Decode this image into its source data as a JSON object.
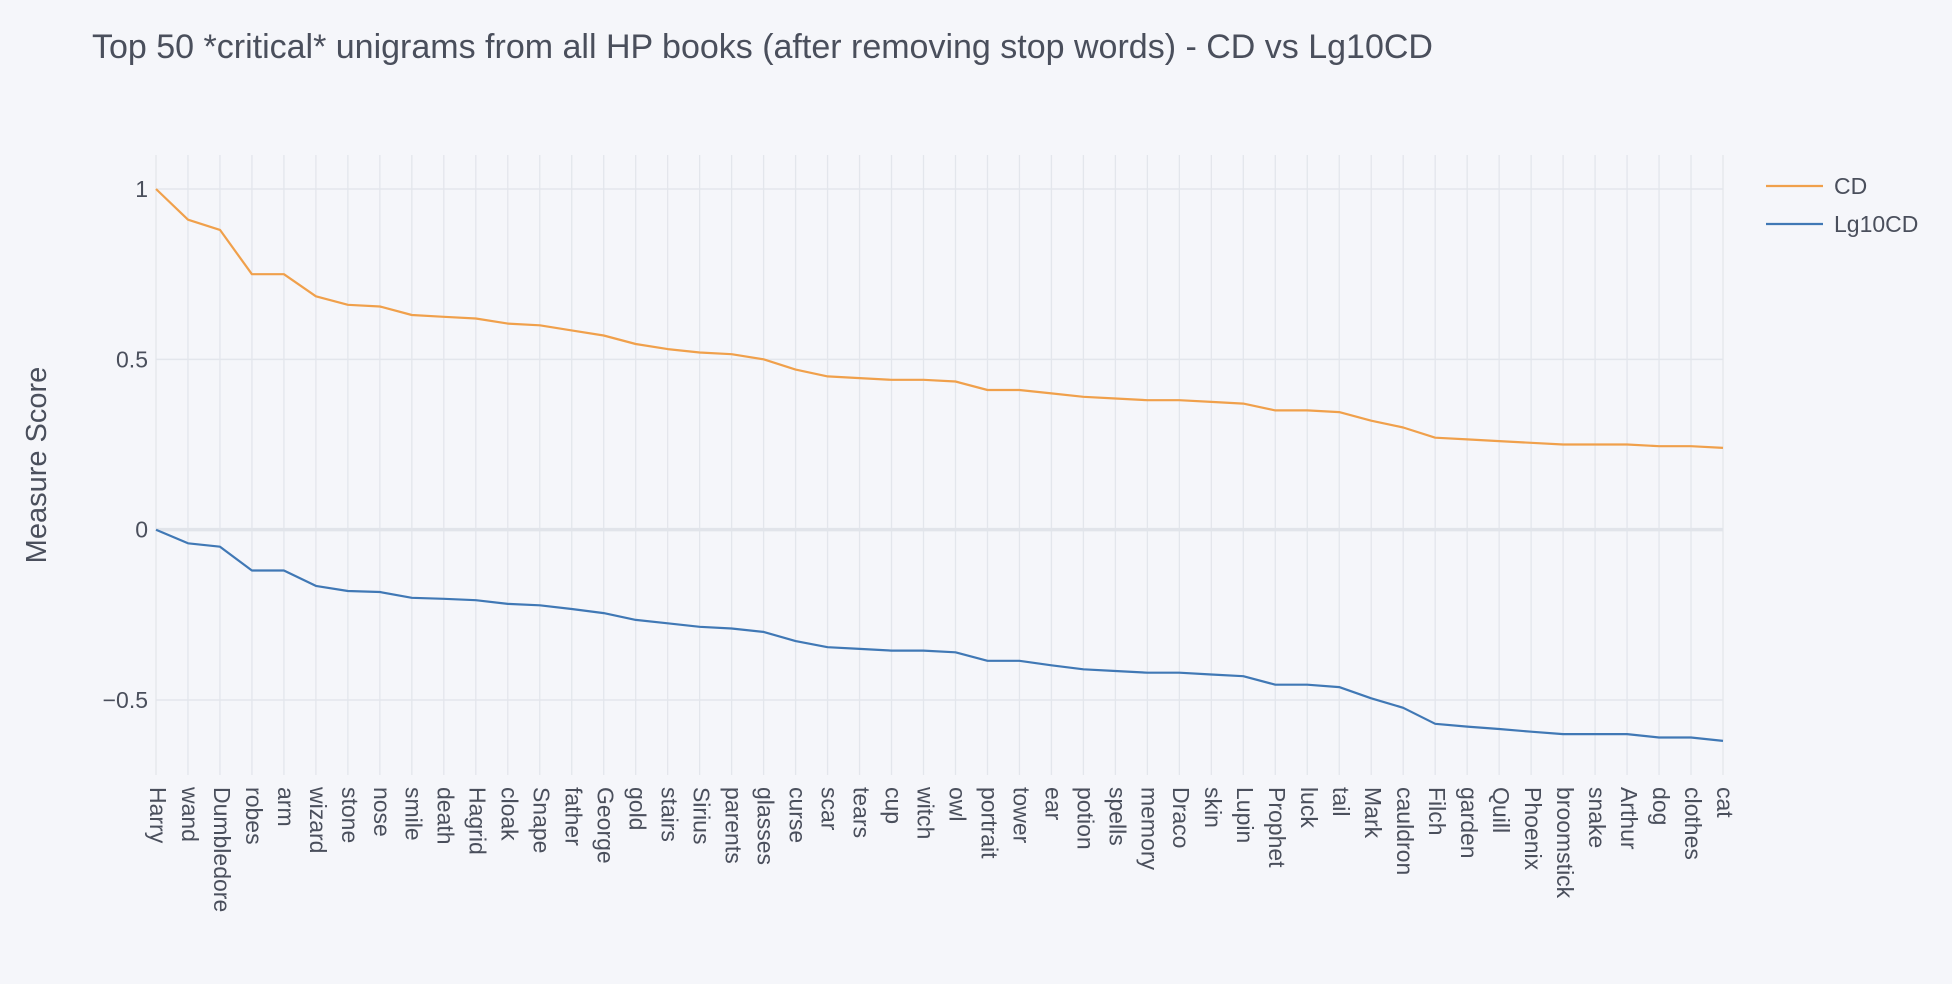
{
  "chart_data": {
    "type": "line",
    "title": "Top 50 *critical* unigrams from all HP books (after removing stop words) - CD vs Lg10CD",
    "xlabel": "",
    "ylabel": "Measure Score",
    "ylim": [
      -0.72,
      1.1
    ],
    "yticks": [
      {
        "value": 1,
        "label": "1"
      },
      {
        "value": 0.5,
        "label": "0.5"
      },
      {
        "value": 0,
        "label": "0"
      },
      {
        "value": -0.5,
        "label": "−0.5"
      }
    ],
    "grid": true,
    "legend_position": "top-right",
    "categories": [
      "Harry",
      "wand",
      "Dumbledore",
      "robes",
      "arm",
      "wizard",
      "stone",
      "nose",
      "smile",
      "death",
      "Hagrid",
      "cloak",
      "Snape",
      "father",
      "George",
      "gold",
      "stairs",
      "Sirius",
      "parents",
      "glasses",
      "curse",
      "scar",
      "tears",
      "cup",
      "witch",
      "owl",
      "portrait",
      "tower",
      "ear",
      "potion",
      "spells",
      "memory",
      "Draco",
      "skin",
      "Lupin",
      "Prophet",
      "luck",
      "tail",
      "Mark",
      "cauldron",
      "Filch",
      "garden",
      "Quill",
      "Phoenix",
      "broomstick",
      "snake",
      "Arthur",
      "dog",
      "clothes",
      "cat"
    ],
    "series": [
      {
        "name": "CD",
        "color": "#f0a04b",
        "values": [
          1.0,
          0.91,
          0.88,
          0.75,
          0.75,
          0.685,
          0.66,
          0.655,
          0.63,
          0.625,
          0.62,
          0.605,
          0.6,
          0.585,
          0.57,
          0.545,
          0.53,
          0.52,
          0.515,
          0.5,
          0.47,
          0.45,
          0.445,
          0.44,
          0.44,
          0.435,
          0.41,
          0.41,
          0.4,
          0.39,
          0.385,
          0.38,
          0.38,
          0.375,
          0.37,
          0.35,
          0.35,
          0.345,
          0.32,
          0.3,
          0.27,
          0.265,
          0.26,
          0.255,
          0.25,
          0.25,
          0.25,
          0.245,
          0.245,
          0.24
        ]
      },
      {
        "name": "Lg10CD",
        "color": "#4078b5",
        "values": [
          0.0,
          -0.04,
          -0.05,
          -0.12,
          -0.12,
          -0.165,
          -0.18,
          -0.183,
          -0.2,
          -0.203,
          -0.207,
          -0.218,
          -0.222,
          -0.233,
          -0.245,
          -0.265,
          -0.275,
          -0.285,
          -0.29,
          -0.3,
          -0.327,
          -0.345,
          -0.35,
          -0.355,
          -0.355,
          -0.36,
          -0.385,
          -0.385,
          -0.398,
          -0.41,
          -0.415,
          -0.42,
          -0.42,
          -0.425,
          -0.43,
          -0.455,
          -0.455,
          -0.462,
          -0.495,
          -0.523,
          -0.57,
          -0.578,
          -0.585,
          -0.593,
          -0.6,
          -0.6,
          -0.6,
          -0.61,
          -0.61,
          -0.62
        ]
      }
    ]
  }
}
